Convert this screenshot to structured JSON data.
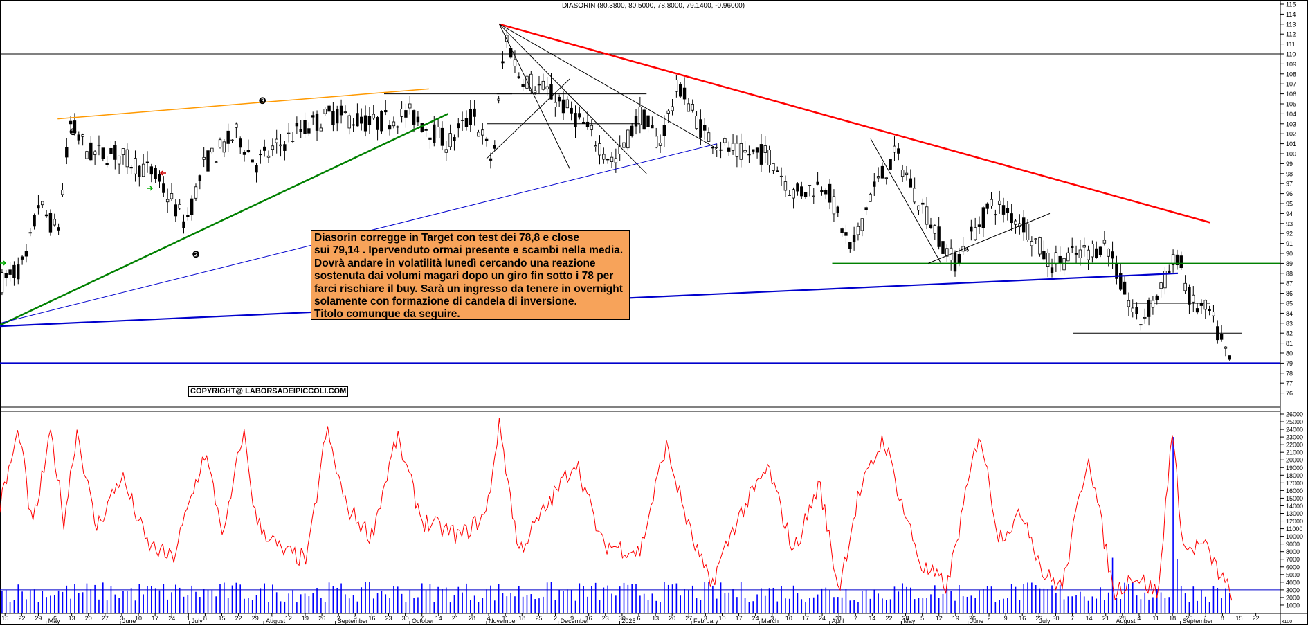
{
  "chart_title": "DIASORIN (80.3800, 80.5000, 78.8000, 79.1400, -0.96000)",
  "annotation_lines": [
    "Diasorin corregge in Target con test dei 78,8 e close",
    "sui 79,14 . Ipervenduto ormai presente e scambi nella media.",
    "Dovrà andare in volatilità lunedì  cercando una reazione",
    "sostenuta dai volumi magari dopo un giro fin sotto i 78 per",
    "farci rischiare il buy. Sarà un ingresso da tenere in overnight",
    "solamente con formazione di candela di inversione.",
    "Titolo comunque da seguire."
  ],
  "copyright": "COPYRIGHT@ LABORSADEIPICCOLI.COM",
  "pattern_markers": [
    "❶",
    "❷",
    "❸"
  ],
  "scale_tag": "x100",
  "colors": {
    "resistance_red": "#ff0000",
    "trend_green": "#008000",
    "trend_orange": "#ff9900",
    "support_blue": "#0000cc",
    "support_green": "#00aa00",
    "volume_red": "#ff0000",
    "volume_bar_blue": "#0000ff",
    "note_bg": "#f7a35a"
  },
  "chart_data": [
    {
      "type": "candlestick",
      "title": "DIASORIN (80.3800, 80.5000, 78.8000, 79.1400, -0.96000)",
      "ylim": [
        75,
        115
      ],
      "y_ticks": [
        76,
        77,
        78,
        79,
        80,
        81,
        82,
        83,
        84,
        85,
        86,
        87,
        88,
        89,
        90,
        91,
        92,
        93,
        94,
        95,
        96,
        97,
        98,
        99,
        100,
        101,
        102,
        103,
        104,
        105,
        106,
        107,
        108,
        109,
        110,
        111,
        112,
        113,
        114,
        115
      ],
      "last_bar": {
        "open": 80.38,
        "high": 80.5,
        "low": 78.8,
        "close": 79.14,
        "change": -0.96
      },
      "price_path_approx": [
        [
          0,
          87
        ],
        [
          0.02,
          89
        ],
        [
          0.03,
          95
        ],
        [
          0.045,
          92
        ],
        [
          0.055,
          103
        ],
        [
          0.07,
          100
        ],
        [
          0.09,
          100
        ],
        [
          0.12,
          98
        ],
        [
          0.145,
          93
        ],
        [
          0.16,
          99
        ],
        [
          0.185,
          102
        ],
        [
          0.2,
          99
        ],
        [
          0.23,
          102
        ],
        [
          0.26,
          104
        ],
        [
          0.29,
          103
        ],
        [
          0.32,
          104
        ],
        [
          0.35,
          101
        ],
        [
          0.37,
          104
        ],
        [
          0.385,
          99
        ],
        [
          0.395,
          112
        ],
        [
          0.405,
          108
        ],
        [
          0.43,
          106
        ],
        [
          0.455,
          103
        ],
        [
          0.48,
          99
        ],
        [
          0.5,
          104
        ],
        [
          0.515,
          101
        ],
        [
          0.53,
          107
        ],
        [
          0.55,
          102
        ],
        [
          0.575,
          100
        ],
        [
          0.6,
          100
        ],
        [
          0.62,
          96
        ],
        [
          0.645,
          97
        ],
        [
          0.665,
          90
        ],
        [
          0.68,
          96
        ],
        [
          0.7,
          100
        ],
        [
          0.715,
          96
        ],
        [
          0.745,
          89
        ],
        [
          0.775,
          95
        ],
        [
          0.8,
          93
        ],
        [
          0.82,
          89
        ],
        [
          0.845,
          90
        ],
        [
          0.865,
          91
        ],
        [
          0.875,
          87
        ],
        [
          0.89,
          83
        ],
        [
          0.905,
          86
        ],
        [
          0.92,
          90
        ],
        [
          0.93,
          85
        ],
        [
          0.945,
          84
        ],
        [
          0.96,
          79
        ]
      ],
      "horizontal_lines": [
        110,
        79,
        89,
        82,
        85
      ],
      "trendlines": [
        {
          "color": "red",
          "from": [
            0.39,
            113
          ],
          "to": [
            0.945,
            93.1
          ]
        },
        {
          "color": "green",
          "from": [
            0,
            82.8
          ],
          "to": [
            0.35,
            104
          ]
        },
        {
          "color": "orange",
          "from": [
            0.045,
            103.5
          ],
          "to": [
            0.335,
            106.5
          ]
        },
        {
          "color": "blue",
          "from": [
            0,
            83
          ],
          "to": [
            0.56,
            101
          ]
        },
        {
          "color": "blue",
          "from": [
            0,
            82.7
          ],
          "to": [
            0.92,
            88
          ]
        },
        {
          "color": "green",
          "from": [
            0.65,
            89
          ],
          "to": [
            1,
            89
          ]
        }
      ]
    },
    {
      "type": "line",
      "series": [
        {
          "name": "",
          "values": []
        }
      ],
      "y_ticks": [
        1000,
        2000,
        3000,
        4000,
        5000,
        6000,
        7000,
        8000,
        9000,
        10000,
        11000,
        12000,
        13000,
        14000,
        15000,
        16000,
        17000,
        18000,
        19000,
        20000,
        21000,
        22000,
        23000,
        24000,
        25000,
        26000
      ],
      "ylim": [
        0,
        26000
      ],
      "oscillator_path_approx": [
        [
          0,
          14000
        ],
        [
          0.015,
          24000
        ],
        [
          0.025,
          11000
        ],
        [
          0.04,
          23500
        ],
        [
          0.05,
          12000
        ],
        [
          0.06,
          24000
        ],
        [
          0.075,
          11000
        ],
        [
          0.095,
          18000
        ],
        [
          0.115,
          9000
        ],
        [
          0.135,
          7000
        ],
        [
          0.16,
          21000
        ],
        [
          0.175,
          10000
        ],
        [
          0.19,
          24000
        ],
        [
          0.2,
          12000
        ],
        [
          0.22,
          8000
        ],
        [
          0.24,
          7000
        ],
        [
          0.255,
          24000
        ],
        [
          0.27,
          14000
        ],
        [
          0.29,
          10000
        ],
        [
          0.31,
          23000
        ],
        [
          0.33,
          12000
        ],
        [
          0.36,
          10000
        ],
        [
          0.38,
          13000
        ],
        [
          0.39,
          25000
        ],
        [
          0.405,
          8000
        ],
        [
          0.42,
          12000
        ],
        [
          0.45,
          20000
        ],
        [
          0.47,
          9000
        ],
        [
          0.5,
          8000
        ],
        [
          0.52,
          22000
        ],
        [
          0.54,
          10000
        ],
        [
          0.555,
          3500
        ],
        [
          0.575,
          12000
        ],
        [
          0.6,
          19000
        ],
        [
          0.62,
          8000
        ],
        [
          0.64,
          17000
        ],
        [
          0.655,
          3000
        ],
        [
          0.67,
          15000
        ],
        [
          0.69,
          23000
        ],
        [
          0.705,
          14000
        ],
        [
          0.72,
          6000
        ],
        [
          0.74,
          3500
        ],
        [
          0.765,
          24000
        ],
        [
          0.78,
          10000
        ],
        [
          0.8,
          13000
        ],
        [
          0.815,
          5000
        ],
        [
          0.83,
          3500
        ],
        [
          0.85,
          21000
        ],
        [
          0.87,
          2500
        ],
        [
          0.885,
          5000
        ],
        [
          0.905,
          2500
        ],
        [
          0.915,
          24000
        ],
        [
          0.925,
          8000
        ],
        [
          0.94,
          9000
        ],
        [
          0.96,
          2800
        ]
      ],
      "volume_bars_baseline": 3000,
      "volume_spikes": [
        [
          0.87,
          7200
        ],
        [
          0.917,
          23000
        ],
        [
          0.92,
          7000
        ]
      ],
      "horizontal_lines": [
        3000
      ]
    }
  ],
  "x_axis": {
    "day_ticks": [
      "15",
      "22",
      "29",
      "6",
      "13",
      "20",
      "27",
      "3",
      "10",
      "17",
      "24",
      "1",
      "8",
      "15",
      "22",
      "29",
      "5",
      "12",
      "19",
      "26",
      "2",
      "9",
      "16",
      "23",
      "30",
      "7",
      "14",
      "21",
      "28",
      "4",
      "11",
      "18",
      "25",
      "2",
      "9",
      "16",
      "23",
      "30",
      "6",
      "13",
      "20",
      "27",
      "3",
      "10",
      "17",
      "24",
      "3",
      "10",
      "17",
      "24",
      "31",
      "7",
      "14",
      "22",
      "28",
      "5",
      "12",
      "19",
      "26",
      "2",
      "9",
      "16",
      "23",
      "30",
      "7",
      "14",
      "21",
      "28",
      "4",
      "11",
      "18",
      "25",
      "1",
      "8",
      "15",
      "22"
    ],
    "months": [
      {
        "label": "May",
        "t": 0.036
      },
      {
        "label": "June",
        "t": 0.094
      },
      {
        "label": "July",
        "t": 0.148
      },
      {
        "label": "August",
        "t": 0.206
      },
      {
        "label": "September",
        "t": 0.262
      },
      {
        "label": "October",
        "t": 0.32
      },
      {
        "label": "November",
        "t": 0.38
      },
      {
        "label": "December",
        "t": 0.436
      },
      {
        "label": "2025",
        "t": 0.484
      },
      {
        "label": "February",
        "t": 0.54
      },
      {
        "label": "March",
        "t": 0.593
      },
      {
        "label": "April",
        "t": 0.648
      },
      {
        "label": "May",
        "t": 0.704
      },
      {
        "label": "June",
        "t": 0.756
      },
      {
        "label": "July",
        "t": 0.81
      },
      {
        "label": "August",
        "t": 0.87
      },
      {
        "label": "September",
        "t": 0.922
      }
    ]
  }
}
